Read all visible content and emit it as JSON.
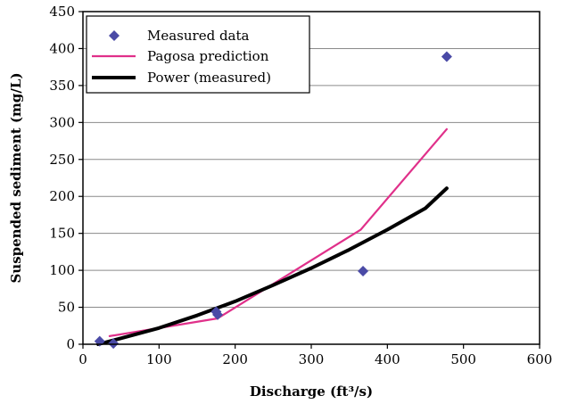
{
  "chart_data": {
    "type": "scatter",
    "xlabel": "Discharge (ft³/s)",
    "ylabel": "Suspended sediment (mg/L)",
    "xlim": [
      0,
      600
    ],
    "ylim": [
      0,
      450
    ],
    "xticks": [
      0,
      100,
      200,
      300,
      400,
      500,
      600
    ],
    "yticks": [
      0,
      50,
      100,
      150,
      200,
      250,
      300,
      350,
      400,
      450
    ],
    "grid": "horizontal",
    "legend_position": "top-left",
    "series": [
      {
        "name": "Measured data",
        "kind": "markers",
        "marker": "diamond",
        "color": "#4a4aa6",
        "x": [
          22,
          40,
          175,
          177,
          368,
          478
        ],
        "y": [
          4,
          1,
          44,
          40,
          99,
          389
        ]
      },
      {
        "name": "Pagosa prediction",
        "kind": "line",
        "color": "#e0308a",
        "x": [
          35,
          177,
          365,
          478
        ],
        "y": [
          11,
          35,
          155,
          291
        ]
      },
      {
        "name": "Power (measured)",
        "kind": "line",
        "color": "#000000",
        "x": [
          20,
          50,
          100,
          150,
          200,
          250,
          300,
          350,
          400,
          450,
          478
        ],
        "y": [
          0,
          8,
          22,
          39,
          58,
          80,
          103,
          128,
          155,
          184,
          211
        ]
      }
    ]
  }
}
